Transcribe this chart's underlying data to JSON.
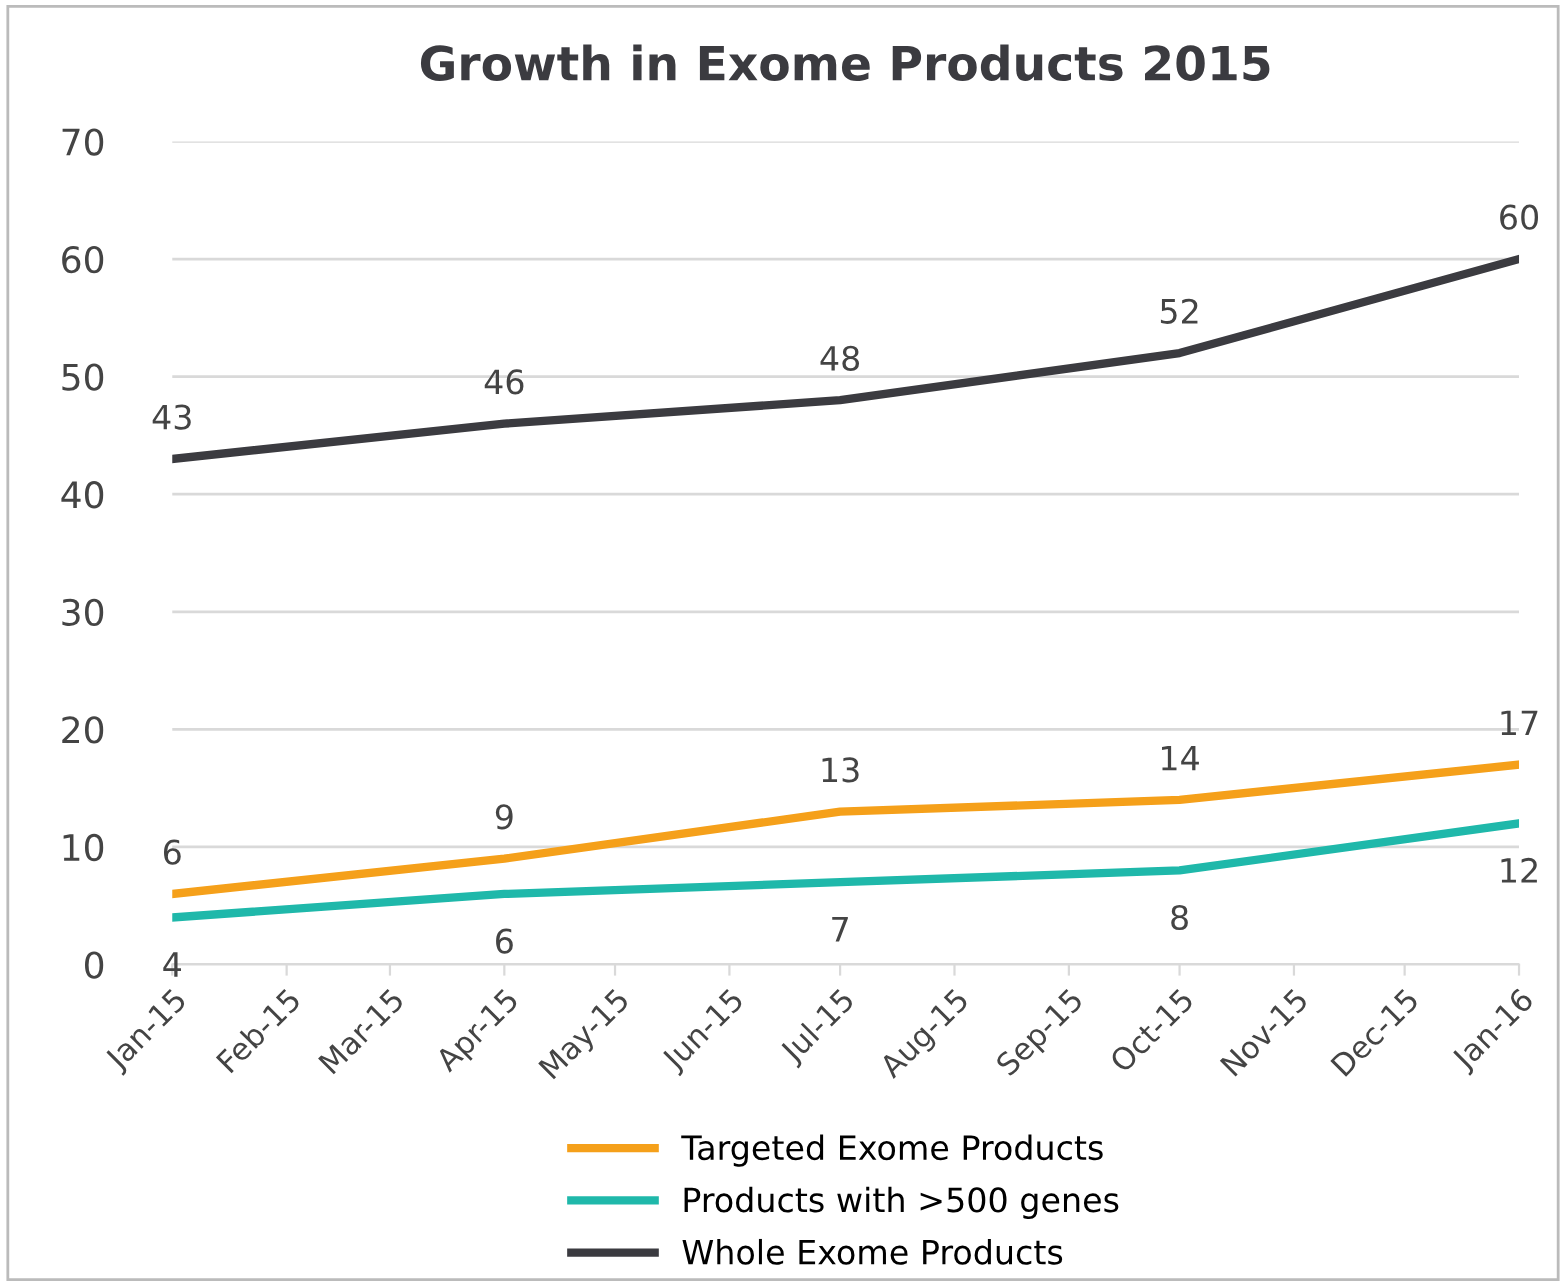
{
  "chart_data": {
    "type": "line",
    "title": "Growth in Exome Products 2015",
    "x": [
      "2015-01",
      "2015-04",
      "2015-07",
      "2015-10",
      "2016-01"
    ],
    "xlim": [
      "2015-01",
      "2016-01"
    ],
    "xticks": [
      {
        "value": "2015-01",
        "label": "Jan-15"
      },
      {
        "value": "2015-02",
        "label": "Feb-15"
      },
      {
        "value": "2015-03",
        "label": "Mar-15"
      },
      {
        "value": "2015-04",
        "label": "Apr-15"
      },
      {
        "value": "2015-05",
        "label": "May-15"
      },
      {
        "value": "2015-06",
        "label": "Jun-15"
      },
      {
        "value": "2015-07",
        "label": "Jul-15"
      },
      {
        "value": "2015-08",
        "label": "Aug-15"
      },
      {
        "value": "2015-09",
        "label": "Sep-15"
      },
      {
        "value": "2015-10",
        "label": "Oct-15"
      },
      {
        "value": "2015-11",
        "label": "Nov-15"
      },
      {
        "value": "2015-12",
        "label": "Dec-15"
      },
      {
        "value": "2016-01",
        "label": "Jan-16"
      }
    ],
    "ylim": [
      0,
      70
    ],
    "yticks": [
      0,
      10,
      20,
      30,
      40,
      50,
      60,
      70
    ],
    "grid": "y",
    "legend": "bottom",
    "data_labels": true,
    "marker": "none",
    "line_style": "solid",
    "series": [
      {
        "name": "Targeted Exome Products",
        "color": "#f5a01a",
        "values": [
          6,
          9,
          13,
          14,
          17
        ]
      },
      {
        "name": "Products with >500 genes",
        "color": "#1fb8aa",
        "values": [
          4,
          6,
          7,
          8,
          12
        ]
      },
      {
        "name": "Whole Exome Products",
        "color": "#3b3b40",
        "values": [
          43,
          46,
          48,
          52,
          60
        ]
      }
    ]
  }
}
